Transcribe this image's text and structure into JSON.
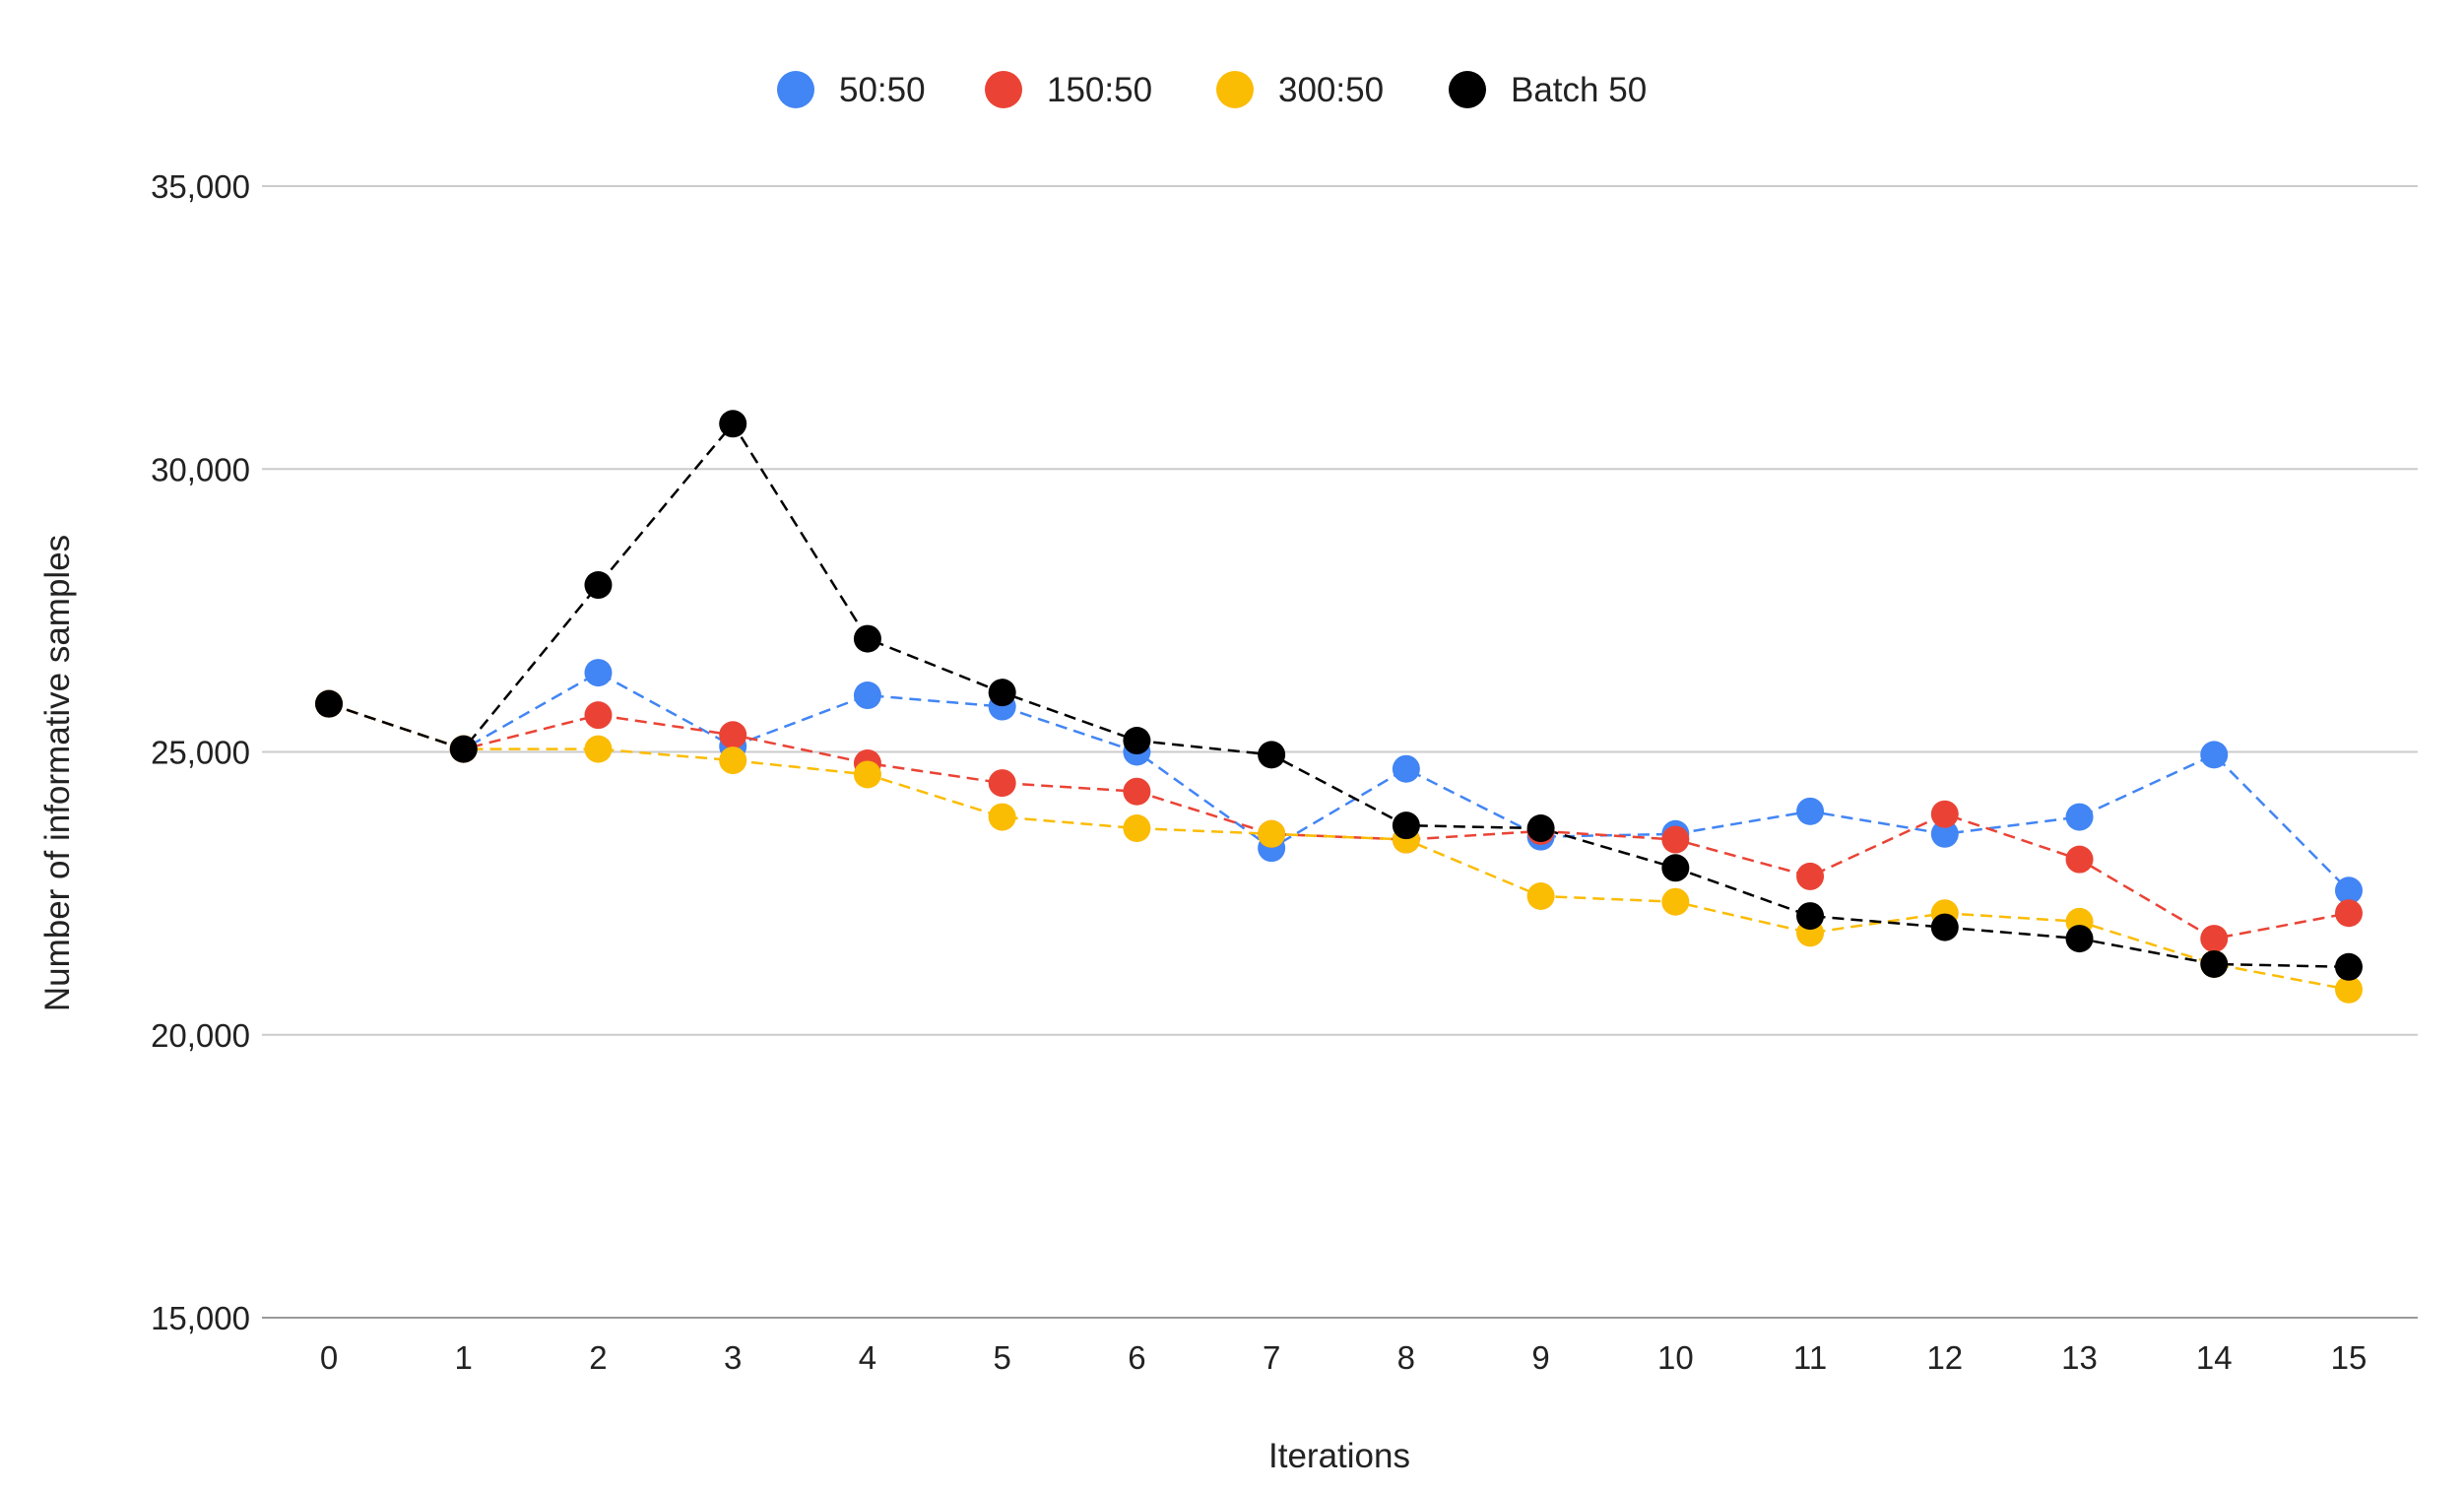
{
  "chart_data": {
    "type": "line",
    "title": "",
    "xlabel": "Iterations",
    "ylabel": "Number of informative samples",
    "ylim": [
      15000,
      35000
    ],
    "yticks": [
      15000,
      20000,
      25000,
      30000,
      35000
    ],
    "ytick_labels": [
      "15,000",
      "20,000",
      "25,000",
      "30,000",
      "35,000"
    ],
    "grid": true,
    "legend_position": "top-center",
    "x": [
      0,
      1,
      2,
      3,
      4,
      5,
      6,
      7,
      8,
      9,
      10,
      11,
      12,
      13,
      14,
      15
    ],
    "series": [
      {
        "name": "50:50",
        "color": "#4285F4",
        "values": [
          25850,
          25050,
          26400,
          25100,
          26000,
          25800,
          25000,
          23300,
          24700,
          23500,
          23550,
          23950,
          23550,
          23850,
          24950,
          22550
        ]
      },
      {
        "name": "150:50",
        "color": "#EA4335",
        "values": [
          25850,
          25050,
          25650,
          25300,
          24800,
          24450,
          24300,
          23550,
          23450,
          23600,
          23450,
          22800,
          23900,
          23100,
          21700,
          22150
        ]
      },
      {
        "name": "300:50",
        "color": "#FBBC04",
        "values": [
          25850,
          25050,
          25050,
          24850,
          24600,
          23850,
          23650,
          23550,
          23450,
          22450,
          22350,
          21800,
          22150,
          22000,
          21250,
          20800
        ]
      },
      {
        "name": "Batch 50",
        "color": "#000000",
        "values": [
          25850,
          25050,
          27950,
          30800,
          27000,
          26050,
          25200,
          24950,
          23700,
          23650,
          22950,
          22100,
          21900,
          21700,
          21250,
          21200
        ]
      }
    ]
  }
}
